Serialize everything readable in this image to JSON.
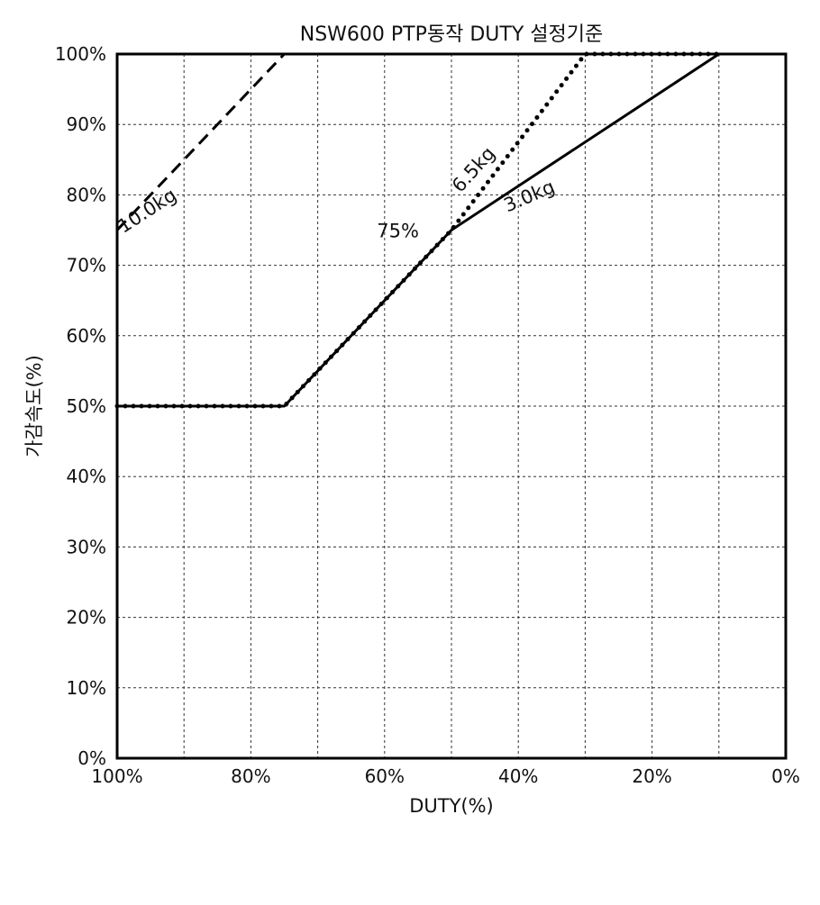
{
  "chart_data": {
    "type": "line",
    "title": "NSW600 PTP동작 DUTY 설정기준",
    "xlabel": "DUTY(%)",
    "ylabel": "가감속도(%)",
    "xlim": [
      100,
      0
    ],
    "ylim": [
      0,
      100
    ],
    "x_reversed": true,
    "grid": true,
    "x_ticks": [
      100,
      90,
      80,
      70,
      60,
      50,
      40,
      30,
      20,
      10,
      0
    ],
    "x_tick_labels": [
      "100%",
      "",
      "80%",
      "",
      "60%",
      "",
      "40%",
      "",
      "20%",
      "",
      "0%"
    ],
    "y_ticks": [
      0,
      10,
      20,
      30,
      40,
      50,
      60,
      70,
      80,
      90,
      100
    ],
    "y_tick_labels": [
      "0%",
      "10%",
      "20%",
      "30%",
      "40%",
      "50%",
      "60%",
      "70%",
      "80%",
      "90%",
      "100%"
    ],
    "series": [
      {
        "name": "3.0kg",
        "style": "solid",
        "points": [
          [
            100,
            50
          ],
          [
            75,
            50
          ],
          [
            50,
            75
          ],
          [
            10,
            100
          ],
          [
            0,
            100
          ]
        ]
      },
      {
        "name": "6.5kg",
        "style": "dotted",
        "points": [
          [
            100,
            50
          ],
          [
            75,
            50
          ],
          [
            50,
            75
          ],
          [
            30,
            100
          ],
          [
            10,
            100
          ]
        ]
      },
      {
        "name": "10.0kg",
        "style": "dashed",
        "points": [
          [
            100,
            75
          ],
          [
            75,
            100
          ],
          [
            10,
            100
          ]
        ]
      }
    ],
    "annotations": [
      {
        "text": "10.0kg",
        "x": 95,
        "y": 77,
        "rotate": -33
      },
      {
        "text": "6.5kg",
        "x": 46,
        "y": 83,
        "rotate": -48
      },
      {
        "text": "3.0kg",
        "x": 38,
        "y": 79,
        "rotate": -23
      },
      {
        "text": "75%",
        "x": 58,
        "y": 74,
        "rotate": 0
      }
    ]
  }
}
